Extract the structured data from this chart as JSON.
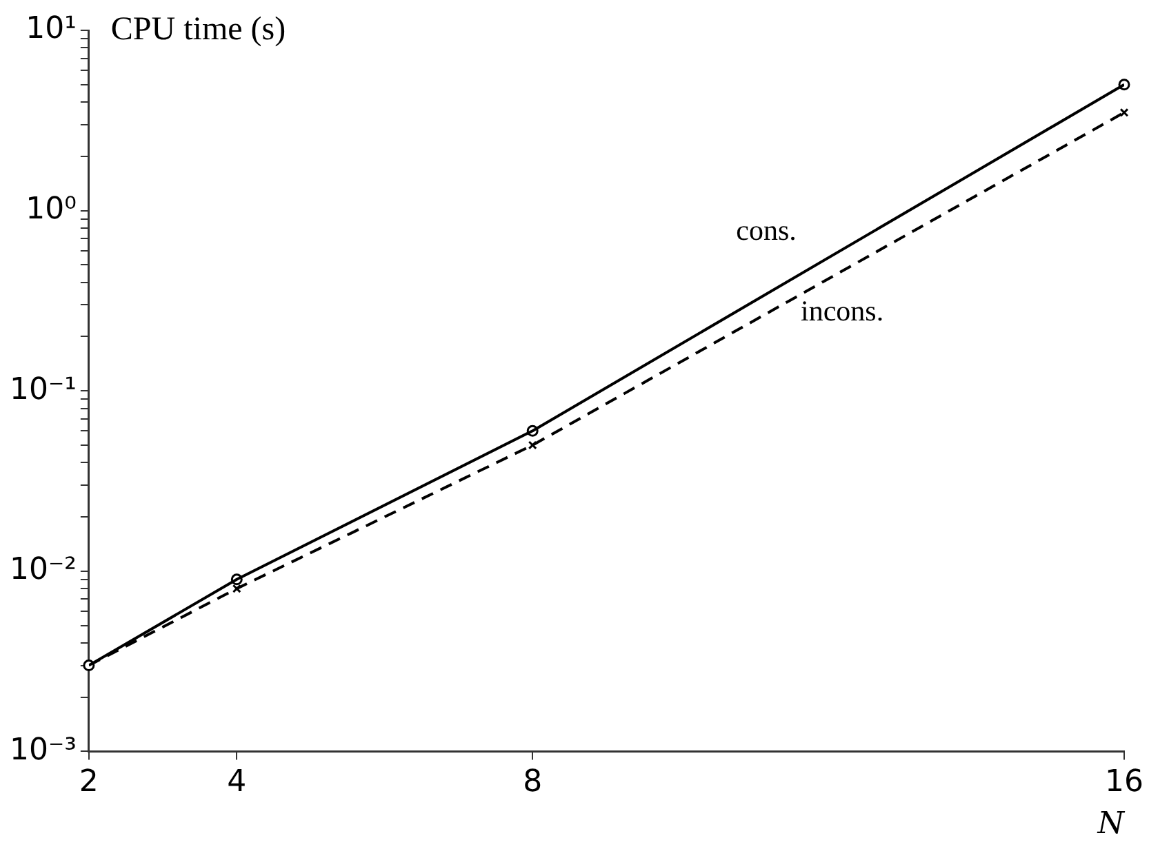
{
  "chart_data": {
    "type": "line",
    "ylabel": "CPU time (s)",
    "xlabel": "N",
    "x": [
      2,
      4,
      8,
      16
    ],
    "log": "y",
    "xlim": [
      2,
      16
    ],
    "xticks": [
      2,
      4,
      8,
      16
    ],
    "ylim": [
      0.001,
      10
    ],
    "yticks": [
      {
        "value": 0.001,
        "label": "10⁻³"
      },
      {
        "value": 0.002,
        "label": null
      },
      {
        "value": 0.003,
        "label": null
      },
      {
        "value": 0.004,
        "label": null
      },
      {
        "value": 0.005,
        "label": null
      },
      {
        "value": 0.006,
        "label": null
      },
      {
        "value": 0.007,
        "label": null
      },
      {
        "value": 0.008,
        "label": null
      },
      {
        "value": 0.009,
        "label": null
      },
      {
        "value": 0.01,
        "label": "10⁻²"
      },
      {
        "value": 0.02,
        "label": null
      },
      {
        "value": 0.03,
        "label": null
      },
      {
        "value": 0.04,
        "label": null
      },
      {
        "value": 0.05,
        "label": null
      },
      {
        "value": 0.06,
        "label": null
      },
      {
        "value": 0.07,
        "label": null
      },
      {
        "value": 0.08,
        "label": null
      },
      {
        "value": 0.09,
        "label": null
      },
      {
        "value": 0.1,
        "label": "10⁻¹"
      },
      {
        "value": 0.2,
        "label": null
      },
      {
        "value": 0.3,
        "label": null
      },
      {
        "value": 0.4,
        "label": null
      },
      {
        "value": 0.5,
        "label": null
      },
      {
        "value": 0.6,
        "label": null
      },
      {
        "value": 0.7,
        "label": null
      },
      {
        "value": 0.8,
        "label": null
      },
      {
        "value": 0.9,
        "label": null
      },
      {
        "value": 1,
        "label": "10⁰"
      },
      {
        "value": 2,
        "label": null
      },
      {
        "value": 3,
        "label": null
      },
      {
        "value": 4,
        "label": null
      },
      {
        "value": 5,
        "label": null
      },
      {
        "value": 6,
        "label": null
      },
      {
        "value": 7,
        "label": null
      },
      {
        "value": 8,
        "label": null
      },
      {
        "value": 9,
        "label": null
      },
      {
        "value": 10,
        "label": "10¹"
      }
    ],
    "grid": false,
    "legend": false,
    "series": [
      {
        "name": "cons.",
        "color": "#000000",
        "marker": "circle",
        "line_style": "solid",
        "values": [
          0.003,
          0.009,
          0.06,
          5
        ]
      },
      {
        "name": "incons.",
        "color": "#000000",
        "marker": "cross",
        "line_style": "dashed",
        "values": [
          0.003,
          0.008,
          0.05,
          3.5
        ]
      }
    ]
  }
}
